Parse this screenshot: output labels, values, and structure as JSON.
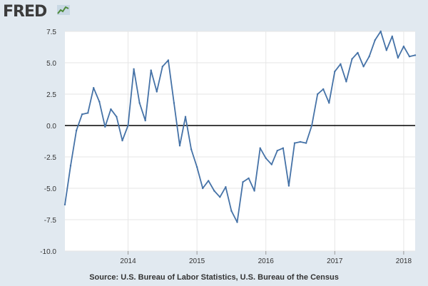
{
  "brand": {
    "name": "FRED",
    "icon": "fred-graph-icon"
  },
  "colors": {
    "line": "#4572a7",
    "zero_line": "#000000",
    "grid": "#e6e6e6",
    "background": "#e1e9f0",
    "plot_background": "#ffffff"
  },
  "source_text": "Source: U.S. Bureau of Labor Statistics, U.S. Bureau of the Census",
  "chart_data": {
    "type": "line",
    "title": "",
    "xlabel": "",
    "ylabel": "",
    "xlim": [
      "2013-02",
      "2018-03"
    ],
    "ylim": [
      -10.0,
      7.5
    ],
    "yticks": [
      7.5,
      5.0,
      2.5,
      0.0,
      -2.5,
      -5.0,
      -7.5,
      -10.0
    ],
    "ytick_labels": [
      "7.5",
      "5.0",
      "2.5",
      "0.0",
      "-2.5",
      "-5.0",
      "-7.5",
      "-10.0"
    ],
    "xticks": [
      "2014",
      "2015",
      "2016",
      "2017",
      "2018"
    ],
    "grid": true,
    "reference_line": 0.0,
    "series": [
      {
        "x": [
          "2013-02",
          "2013-03",
          "2013-04",
          "2013-05",
          "2013-06",
          "2013-07",
          "2013-08",
          "2013-09",
          "2013-10",
          "2013-11",
          "2013-12",
          "2014-01",
          "2014-02",
          "2014-03",
          "2014-04",
          "2014-05",
          "2014-06",
          "2014-07",
          "2014-08",
          "2014-09",
          "2014-10",
          "2014-11",
          "2014-12",
          "2015-01",
          "2015-02",
          "2015-03",
          "2015-04",
          "2015-05",
          "2015-06",
          "2015-07",
          "2015-08",
          "2015-09",
          "2015-10",
          "2015-11",
          "2015-12",
          "2016-01",
          "2016-02",
          "2016-03",
          "2016-04",
          "2016-05",
          "2016-06",
          "2016-07",
          "2016-08",
          "2016-09",
          "2016-10",
          "2016-11",
          "2016-12",
          "2017-01",
          "2017-02",
          "2017-03",
          "2017-04",
          "2017-05",
          "2017-06",
          "2017-07",
          "2017-08",
          "2017-09",
          "2017-10",
          "2017-11",
          "2017-12",
          "2018-01",
          "2018-02",
          "2018-03"
        ],
        "values": [
          -6.3,
          -3.2,
          -0.4,
          0.9,
          1.0,
          3.0,
          1.9,
          -0.1,
          1.3,
          0.7,
          -1.2,
          0.0,
          4.5,
          1.8,
          0.4,
          4.4,
          2.7,
          4.7,
          5.2,
          1.8,
          -1.6,
          0.7,
          -1.9,
          -3.3,
          -5.0,
          -4.4,
          -5.2,
          -5.7,
          -4.9,
          -6.8,
          -7.7,
          -4.5,
          -4.2,
          -5.2,
          -1.8,
          -2.6,
          -3.1,
          -2.0,
          -1.8,
          -4.8,
          -1.4,
          -1.3,
          -1.4,
          0.0,
          2.5,
          2.9,
          1.8,
          4.3,
          4.9,
          3.5,
          5.3,
          5.8,
          4.7,
          5.5,
          6.8,
          7.5,
          6.0,
          7.1,
          5.4,
          6.3,
          5.5,
          5.6
        ]
      }
    ]
  }
}
